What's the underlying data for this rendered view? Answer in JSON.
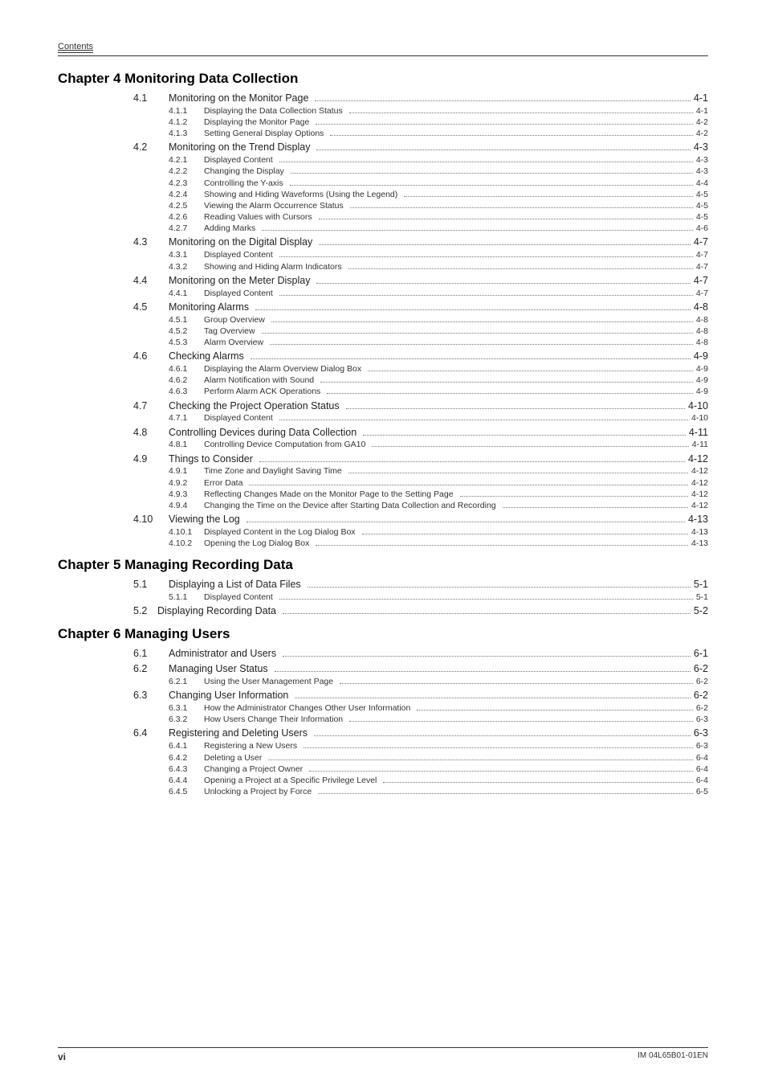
{
  "running_head": "Contents",
  "footer": {
    "page_num": "vi",
    "doc_id": "IM 04L65B01-01EN"
  },
  "chapters": [
    {
      "heading": "Chapter 4  Monitoring Data Collection",
      "entries": [
        {
          "lvl": 1,
          "num": "4.1",
          "title": "Monitoring on the Monitor Page",
          "page": "4-1"
        },
        {
          "lvl": 2,
          "num": "4.1.1",
          "title": "Displaying the Data Collection Status",
          "page": "4-1"
        },
        {
          "lvl": 2,
          "num": "4.1.2",
          "title": "Displaying the Monitor Page",
          "page": "4-2"
        },
        {
          "lvl": 2,
          "num": "4.1.3",
          "title": "Setting General Display Options",
          "page": "4-2"
        },
        {
          "lvl": 1,
          "num": "4.2",
          "title": "Monitoring on the Trend Display",
          "page": "4-3"
        },
        {
          "lvl": 2,
          "num": "4.2.1",
          "title": "Displayed Content",
          "page": "4-3"
        },
        {
          "lvl": 2,
          "num": "4.2.2",
          "title": "Changing the Display",
          "page": "4-3"
        },
        {
          "lvl": 2,
          "num": "4.2.3",
          "title": "Controlling the Y-axis",
          "page": "4-4"
        },
        {
          "lvl": 2,
          "num": "4.2.4",
          "title": "Showing and Hiding Waveforms (Using the Legend)",
          "page": "4-5"
        },
        {
          "lvl": 2,
          "num": "4.2.5",
          "title": "Viewing the Alarm Occurrence Status",
          "page": "4-5"
        },
        {
          "lvl": 2,
          "num": "4.2.6",
          "title": "Reading Values with Cursors",
          "page": "4-5"
        },
        {
          "lvl": 2,
          "num": "4.2.7",
          "title": "Adding Marks",
          "page": "4-6"
        },
        {
          "lvl": 1,
          "num": "4.3",
          "title": "Monitoring on the Digital Display",
          "page": "4-7"
        },
        {
          "lvl": 2,
          "num": "4.3.1",
          "title": "Displayed Content",
          "page": "4-7"
        },
        {
          "lvl": 2,
          "num": "4.3.2",
          "title": "Showing and Hiding Alarm Indicators",
          "page": "4-7"
        },
        {
          "lvl": 1,
          "num": "4.4",
          "title": "Monitoring on the Meter Display",
          "page": "4-7"
        },
        {
          "lvl": 2,
          "num": "4.4.1",
          "title": "Displayed Content",
          "page": "4-7"
        },
        {
          "lvl": 1,
          "num": "4.5",
          "title": "Monitoring Alarms",
          "page": "4-8"
        },
        {
          "lvl": 2,
          "num": "4.5.1",
          "title": "Group Overview",
          "page": "4-8"
        },
        {
          "lvl": 2,
          "num": "4.5.2",
          "title": "Tag Overview",
          "page": "4-8"
        },
        {
          "lvl": 2,
          "num": "4.5.3",
          "title": "Alarm Overview",
          "page": "4-8"
        },
        {
          "lvl": 1,
          "num": "4.6",
          "title": "Checking Alarms",
          "page": "4-9"
        },
        {
          "lvl": 2,
          "num": "4.6.1",
          "title": "Displaying the Alarm Overview Dialog Box",
          "page": "4-9"
        },
        {
          "lvl": 2,
          "num": "4.6.2",
          "title": "Alarm Notification with Sound",
          "page": "4-9"
        },
        {
          "lvl": 2,
          "num": "4.6.3",
          "title": "Perform Alarm ACK Operations",
          "page": "4-9"
        },
        {
          "lvl": 1,
          "num": "4.7",
          "title": "Checking the Project Operation Status",
          "page": "4-10"
        },
        {
          "lvl": 2,
          "num": "4.7.1",
          "title": "Displayed Content",
          "page": "4-10"
        },
        {
          "lvl": 1,
          "num": "4.8",
          "title": "Controlling Devices during Data Collection",
          "page": "4-11"
        },
        {
          "lvl": 2,
          "num": "4.8.1",
          "title": "Controlling Device Computation from GA10",
          "page": "4-11"
        },
        {
          "lvl": 1,
          "num": "4.9",
          "title": "Things to Consider",
          "page": "4-12"
        },
        {
          "lvl": 2,
          "num": "4.9.1",
          "title": "Time Zone and Daylight Saving Time",
          "page": "4-12"
        },
        {
          "lvl": 2,
          "num": "4.9.2",
          "title": "Error Data",
          "page": "4-12"
        },
        {
          "lvl": 2,
          "num": "4.9.3",
          "title": "Reflecting Changes Made on the Monitor Page to the Setting Page",
          "page": "4-12"
        },
        {
          "lvl": 2,
          "num": "4.9.4",
          "title": "Changing the Time on the Device after Starting Data Collection and Recording",
          "page": "4-12"
        },
        {
          "lvl": 1,
          "num": "4.10",
          "title": "Viewing the Log",
          "page": "4-13"
        },
        {
          "lvl": 2,
          "num": "4.10.1",
          "title": "Displayed Content in the Log Dialog Box",
          "page": "4-13"
        },
        {
          "lvl": 2,
          "num": "4.10.2",
          "title": "Opening the Log Dialog Box",
          "page": "4-13"
        }
      ]
    },
    {
      "heading": "Chapter 5  Managing Recording Data",
      "entries": [
        {
          "lvl": 1,
          "num": "5.1",
          "title": "Displaying a List of Data Files",
          "page": "5-1"
        },
        {
          "lvl": 2,
          "num": "5.1.1",
          "title": "Displayed Content",
          "page": "5-1"
        },
        {
          "lvl": 1,
          "num": "5.2",
          "title": "Displaying Recording Data",
          "page": "5-2",
          "alt": true
        }
      ]
    },
    {
      "heading": "Chapter 6  Managing Users",
      "entries": [
        {
          "lvl": 1,
          "num": "6.1",
          "title": "Administrator and Users",
          "page": "6-1"
        },
        {
          "lvl": 1,
          "num": "6.2",
          "title": "Managing User Status",
          "page": "6-2"
        },
        {
          "lvl": 2,
          "num": "6.2.1",
          "title": "Using the User Management Page",
          "page": "6-2"
        },
        {
          "lvl": 1,
          "num": "6.3",
          "title": "Changing User Information",
          "page": "6-2"
        },
        {
          "lvl": 2,
          "num": "6.3.1",
          "title": "How the Administrator Changes Other User Information",
          "page": "6-2"
        },
        {
          "lvl": 2,
          "num": "6.3.2",
          "title": "How Users Change Their Information",
          "page": "6-3"
        },
        {
          "lvl": 1,
          "num": "6.4",
          "title": "Registering and Deleting Users",
          "page": "6-3"
        },
        {
          "lvl": 2,
          "num": "6.4.1",
          "title": "Registering a New Users",
          "page": "6-3"
        },
        {
          "lvl": 2,
          "num": "6.4.2",
          "title": "Deleting a User",
          "page": "6-4"
        },
        {
          "lvl": 2,
          "num": "6.4.3",
          "title": "Changing a Project Owner",
          "page": "6-4"
        },
        {
          "lvl": 2,
          "num": "6.4.4",
          "title": "Opening a Project at a Specific Privilege Level",
          "page": "6-4"
        },
        {
          "lvl": 2,
          "num": "6.4.5",
          "title": "Unlocking a Project by Force",
          "page": "6-5"
        }
      ]
    }
  ]
}
